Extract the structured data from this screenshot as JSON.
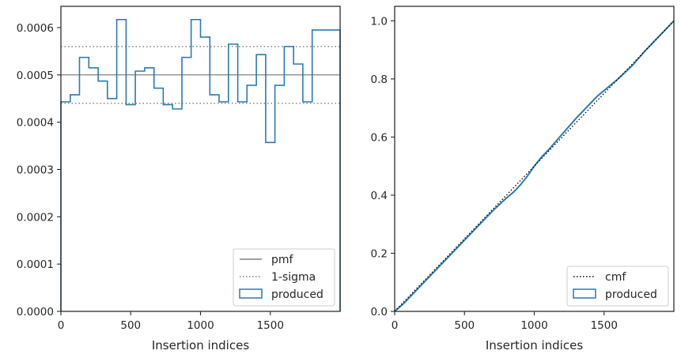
{
  "chart_data": [
    {
      "type": "step-histogram",
      "xlabel": "Insertion indices",
      "ylabel": "",
      "xlim": [
        0,
        2000
      ],
      "ylim": [
        0,
        0.000645
      ],
      "xticks": [
        0,
        500,
        1000,
        1500
      ],
      "xtick_labels": [
        "0",
        "500",
        "1000",
        "1500"
      ],
      "yticks": [
        0,
        0.0001,
        0.0002,
        0.0003,
        0.0004,
        0.0005,
        0.0006
      ],
      "ytick_labels": [
        "0.0000",
        "0.0001",
        "0.0002",
        "0.0003",
        "0.0004",
        "0.0005",
        "0.0006"
      ],
      "pmf": 0.0005,
      "sigma_lines": [
        0.00044,
        0.00056
      ],
      "bins": [
        0,
        67,
        133,
        200,
        267,
        333,
        400,
        467,
        533,
        600,
        667,
        733,
        800,
        867,
        933,
        1000,
        1067,
        1133,
        1200,
        1267,
        1333,
        1400,
        1467,
        1533,
        1600,
        1667,
        1733,
        1800,
        1867,
        2000
      ],
      "values": [
        0.000443,
        0.000458,
        0.000537,
        0.000515,
        0.000487,
        0.00045,
        0.000617,
        0.000437,
        0.000508,
        0.000515,
        0.000472,
        0.000437,
        0.000428,
        0.000537,
        0.000617,
        0.00058,
        0.000458,
        0.000443,
        0.000565,
        0.000443,
        0.000478,
        0.000543,
        0.000357,
        0.000478,
        0.00056,
        0.000523,
        0.000443,
        0.000595,
        0.000595
      ],
      "series_colors": {
        "pmf": "#808080",
        "sigma": "#808080",
        "produced": "#2a7ab0"
      },
      "legend_position": "lower-right",
      "legend": [
        {
          "label": "pmf",
          "style": "solid-line"
        },
        {
          "label": "1-sigma",
          "style": "dotted-line"
        },
        {
          "label": "produced",
          "style": "box"
        }
      ]
    },
    {
      "type": "step-cumulative",
      "xlabel": "Insertion indices",
      "ylabel": "",
      "xlim": [
        0,
        2000
      ],
      "ylim": [
        0,
        1.05
      ],
      "xticks": [
        0,
        500,
        1000,
        1500
      ],
      "xtick_labels": [
        "0",
        "500",
        "1000",
        "1500"
      ],
      "yticks": [
        0,
        0.2,
        0.4,
        0.6,
        0.8,
        1.0
      ],
      "ytick_labels": [
        "0.0",
        "0.2",
        "0.4",
        "0.6",
        "0.8",
        "1.0"
      ],
      "cmf": {
        "x": [
          0,
          2000
        ],
        "y": [
          0,
          1.0
        ]
      },
      "produced": {
        "x": [
          0,
          60,
          120,
          200,
          300,
          400,
          500,
          600,
          700,
          800,
          850,
          900,
          950,
          1000,
          1050,
          1100,
          1200,
          1300,
          1400,
          1450,
          1500,
          1600,
          1700,
          1800,
          1900,
          2000
        ],
        "y": [
          0,
          0.025,
          0.055,
          0.095,
          0.145,
          0.195,
          0.245,
          0.295,
          0.345,
          0.39,
          0.41,
          0.435,
          0.465,
          0.5,
          0.53,
          0.555,
          0.61,
          0.665,
          0.715,
          0.74,
          0.76,
          0.8,
          0.845,
          0.9,
          0.95,
          1.0
        ]
      },
      "series_colors": {
        "cmf": "#000000",
        "produced": "#2a7ab0"
      },
      "legend_position": "lower-right",
      "legend": [
        {
          "label": "cmf",
          "style": "dotted-line"
        },
        {
          "label": "produced",
          "style": "box"
        }
      ]
    }
  ]
}
